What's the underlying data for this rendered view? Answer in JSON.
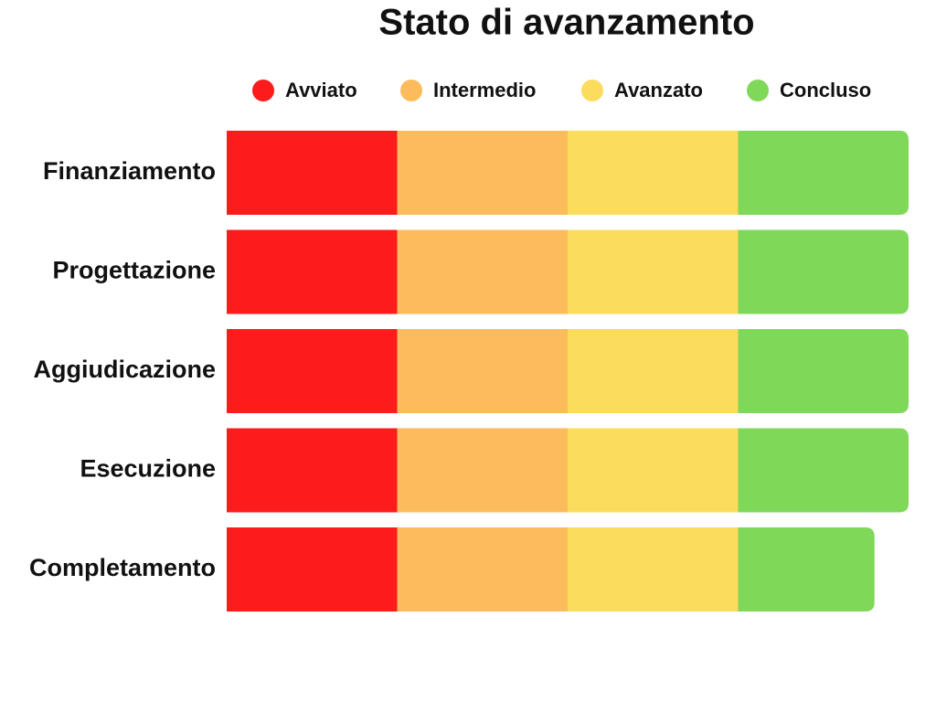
{
  "chart_data": {
    "type": "stacked-bar-horizontal",
    "title": "Stato di avanzamento",
    "categories": [
      "Finanziamento",
      "Progettazione",
      "Aggiudicazione",
      "Esecuzione",
      "Completamento"
    ],
    "xlim": [
      0,
      100
    ],
    "series": [
      {
        "name": "Avviato",
        "color": "#fc1c1c",
        "values": [
          25,
          25,
          25,
          25,
          25
        ]
      },
      {
        "name": "Intermedio",
        "color": "#fcbc5c",
        "values": [
          25,
          25,
          25,
          25,
          25
        ]
      },
      {
        "name": "Avanzato",
        "color": "#fcdc5c",
        "values": [
          25,
          25,
          25,
          25,
          25
        ]
      },
      {
        "name": "Concluso",
        "color": "#80d858",
        "values": [
          25,
          25,
          25,
          25,
          20
        ]
      }
    ]
  }
}
